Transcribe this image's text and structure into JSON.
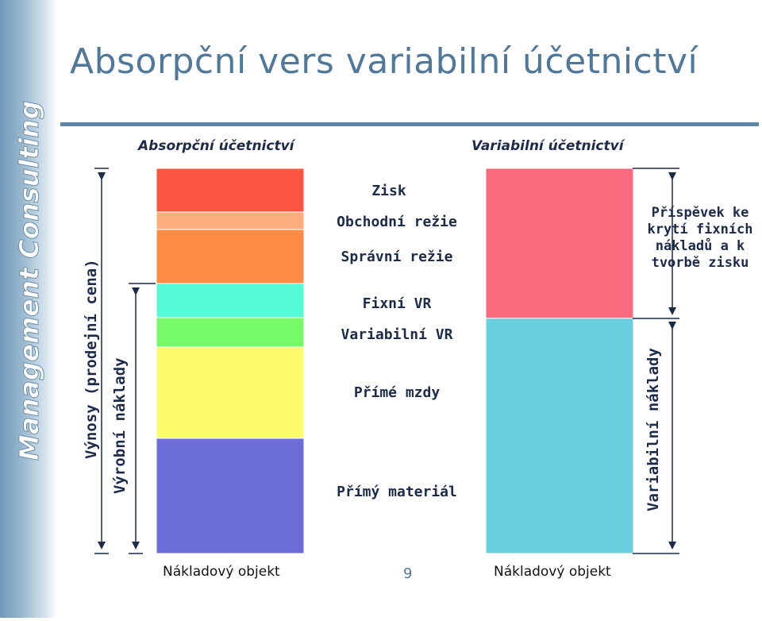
{
  "slide": {
    "title": "Absorpční vers variabilní účetnictví",
    "page_number": "9",
    "logo_text": "Management Consulting"
  },
  "headers": {
    "absorption": "Absorpční účetnictví",
    "variable": "Variabilní účetnictví"
  },
  "absorption_segments": [
    {
      "label": "Zisk",
      "color": "#fd5541",
      "value": 55
    },
    {
      "label": "Obchodní režie",
      "color": "#fcad7e",
      "value": 22
    },
    {
      "label": "Správní režie",
      "color": "#fc8c44",
      "value": 68
    },
    {
      "label": "Fixní VR",
      "color": "#55fad6",
      "value": 43
    },
    {
      "label": "Variabilní VR",
      "color": "#77fa6a",
      "value": 37
    },
    {
      "label": "Přímé mzdy",
      "color": "#fcfc6b",
      "value": 115
    },
    {
      "label": "Přímý materiál",
      "color": "#6d6dd8",
      "value": 145
    }
  ],
  "variable_segments": [
    {
      "label": "Příspěvek ke krytí fixních nákladů a k tvorbě zisku",
      "color": "#fc6a80",
      "value": 190
    },
    {
      "label": "Variabilní náklady",
      "color": "#6acfdc",
      "value": 298
    }
  ],
  "dimension_labels": {
    "revenue": "Výnosy (prodejní cena)",
    "production_costs": "Výrobní náklady",
    "variable_costs": "Variabilní náklady"
  },
  "footers": {
    "left": "Nákladový objekt",
    "right": "Nákladový objekt"
  },
  "colors": {
    "title": "#50789a",
    "rule": "#5f86a6",
    "text": "#1d2b4a"
  }
}
